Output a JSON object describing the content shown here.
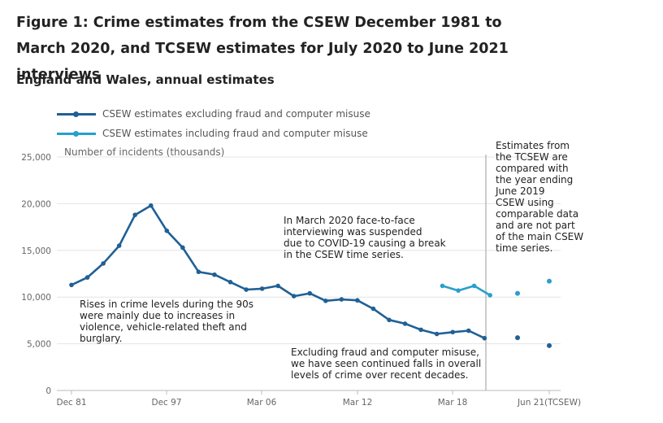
{
  "header": {
    "title": "Figure 1: Crime estimates from the CSEW December 1981 to March 2020, and TCSEW estimates for July 2020 to June 2021 interviews",
    "subtitle": "England and Wales, annual estimates"
  },
  "chart_data": {
    "type": "line",
    "ylabel": "Number of incidents (thousands)",
    "ylim": [
      0,
      25000
    ],
    "yticks": [
      "0",
      "5,000",
      "10,000",
      "15,000",
      "20,000",
      "25,000"
    ],
    "xticks": [
      "Dec 81",
      "Dec 97",
      "Mar 06",
      "Mar 12",
      "Mar 18",
      "Jun 21(TCSEW)"
    ],
    "grid": true,
    "legend_position": "top-left",
    "series": [
      {
        "name": "CSEW estimates excluding fraud and computer misuse",
        "color": "#206095",
        "points": [
          [
            "Dec 81",
            11300
          ],
          [
            "",
            12100
          ],
          [
            "",
            13600
          ],
          [
            "",
            15500
          ],
          [
            "",
            18800
          ],
          [
            "",
            19800
          ],
          [
            "Dec 97",
            17100
          ],
          [
            "",
            15300
          ],
          [
            "",
            12700
          ],
          [
            "",
            12400
          ],
          [
            "",
            11600
          ],
          [
            "",
            10800
          ],
          [
            "Mar 06",
            10900
          ],
          [
            "",
            11200
          ],
          [
            "",
            10100
          ],
          [
            "",
            10400
          ],
          [
            "",
            9600
          ],
          [
            "",
            9750
          ],
          [
            "Mar 12",
            9650
          ],
          [
            "",
            8750
          ],
          [
            "",
            7550
          ],
          [
            "",
            7150
          ],
          [
            "",
            6500
          ],
          [
            "",
            6050
          ],
          [
            "Mar 18",
            6250
          ],
          [
            "",
            6400
          ],
          [
            "",
            5600
          ]
        ],
        "tcsew_points": [
          [
            "",
            5650
          ],
          [
            "Jun 21(TCSEW)",
            4800
          ]
        ]
      },
      {
        "name": "CSEW estimates including fraud and computer misuse",
        "color": "#27a0cc",
        "points": [
          [
            "",
            11200
          ],
          [
            "Mar 18",
            10700
          ],
          [
            "",
            11200
          ],
          [
            "",
            10200
          ]
        ],
        "tcsew_points": [
          [
            "",
            10400
          ],
          [
            "Jun 21(TCSEW)",
            11700
          ]
        ]
      }
    ],
    "annotations": {
      "tcsew_note": [
        "Estimates from",
        "the TCSEW are",
        "compared with",
        "the year ending",
        "June 2019",
        "CSEW using",
        "comparable data",
        "and are not part",
        "of the main CSEW",
        "time series."
      ],
      "march_2020_note": [
        "In March 2020 face-to-face",
        "interviewing was suspended",
        "due to COVID-19 causing a break",
        "in the CSEW time series."
      ],
      "nineties_note": [
        "Rises in crime levels during the 90s",
        "were mainly due to increases in",
        "violence, vehicle-related theft and",
        "burglary."
      ],
      "fraud_note": [
        "Excluding fraud and computer misuse,",
        "we have seen continued falls in overall",
        "levels of crime over recent decades."
      ]
    }
  }
}
